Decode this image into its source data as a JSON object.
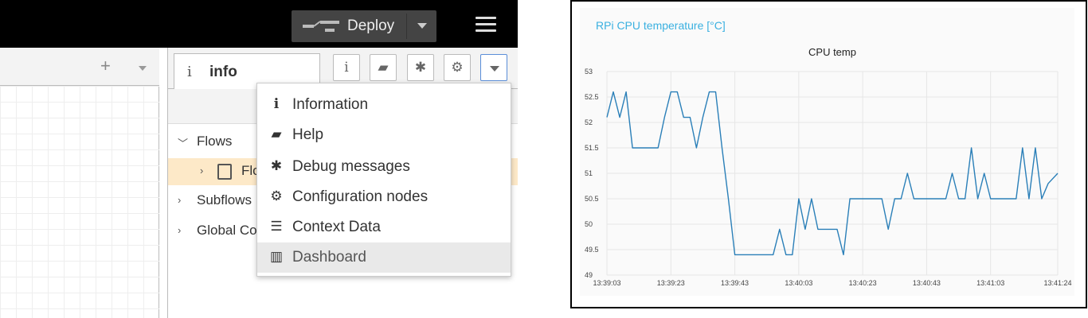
{
  "editor": {
    "deploy_label": "Deploy",
    "workspace": {
      "add_symbol": "+"
    },
    "sidebar": {
      "active_tab_icon": "i",
      "active_tab_label": "info",
      "buttons": [
        {
          "name": "info-icon",
          "glyph": "i"
        },
        {
          "name": "book-icon",
          "glyph": "▰"
        },
        {
          "name": "bug-icon",
          "glyph": "✱"
        },
        {
          "name": "gear-icon",
          "glyph": "⚙"
        }
      ],
      "tree": {
        "flows": "Flows",
        "flow_item": "Flo",
        "subflows": "Subflows",
        "globals": "Global Co"
      }
    },
    "menu": {
      "items": [
        {
          "icon": "info-icon",
          "glyph": "i",
          "label": "Information"
        },
        {
          "icon": "book-icon",
          "glyph": "▰",
          "label": "Help"
        },
        {
          "icon": "bug-icon",
          "glyph": "✱",
          "label": "Debug messages"
        },
        {
          "icon": "gear-icon",
          "glyph": "⚙",
          "label": "Configuration nodes"
        },
        {
          "icon": "database-icon",
          "glyph": "☰",
          "label": "Context Data"
        },
        {
          "icon": "bar-chart-icon",
          "glyph": "▥",
          "label": "Dashboard"
        }
      ],
      "highlighted_index": 5
    }
  },
  "dashboard": {
    "group_title": "RPi CPU temperature [°C]",
    "accent_color": "#3ab0e0",
    "line_color": "#2a7fb8"
  },
  "chart_data": {
    "type": "line",
    "title": "CPU temp",
    "xlabel": "",
    "ylabel": "",
    "ylim": [
      49,
      53
    ],
    "yticks": [
      49,
      49.5,
      50,
      50.5,
      51,
      51.5,
      52,
      52.5,
      53
    ],
    "xticks": [
      "13:39:03",
      "13:39:23",
      "13:39:43",
      "13:40:03",
      "13:40:23",
      "13:40:43",
      "13:41:03",
      "13:41:24"
    ],
    "grid": true,
    "series": [
      {
        "x": [
          "13:39:03",
          "13:39:05",
          "13:39:07",
          "13:39:09",
          "13:39:11",
          "13:39:13",
          "13:39:15",
          "13:39:17",
          "13:39:19",
          "13:39:21",
          "13:39:23",
          "13:39:25",
          "13:39:27",
          "13:39:29",
          "13:39:31",
          "13:39:33",
          "13:39:35",
          "13:39:37",
          "13:39:39",
          "13:39:41",
          "13:39:43",
          "13:39:45",
          "13:39:47",
          "13:39:49",
          "13:39:51",
          "13:39:53",
          "13:39:55",
          "13:39:57",
          "13:39:59",
          "13:40:01",
          "13:40:03",
          "13:40:05",
          "13:40:07",
          "13:40:09",
          "13:40:11",
          "13:40:13",
          "13:40:15",
          "13:40:17",
          "13:40:19",
          "13:40:21",
          "13:40:23",
          "13:40:25",
          "13:40:27",
          "13:40:29",
          "13:40:31",
          "13:40:33",
          "13:40:35",
          "13:40:37",
          "13:40:39",
          "13:40:41",
          "13:40:43",
          "13:40:45",
          "13:40:47",
          "13:40:49",
          "13:40:51",
          "13:40:53",
          "13:40:55",
          "13:40:57",
          "13:40:59",
          "13:41:01",
          "13:41:03",
          "13:41:05",
          "13:41:07",
          "13:41:09",
          "13:41:11",
          "13:41:13",
          "13:41:15",
          "13:41:17",
          "13:41:19",
          "13:41:21",
          "13:41:24"
        ],
        "values": [
          52.1,
          52.6,
          52.1,
          52.6,
          51.5,
          51.5,
          51.5,
          51.5,
          51.5,
          52.1,
          52.6,
          52.6,
          52.1,
          52.1,
          51.5,
          52.1,
          52.6,
          52.6,
          51.5,
          50.5,
          49.4,
          49.4,
          49.4,
          49.4,
          49.4,
          49.4,
          49.4,
          49.9,
          49.4,
          49.4,
          50.5,
          49.9,
          50.5,
          49.9,
          49.9,
          49.9,
          49.9,
          49.4,
          50.5,
          50.5,
          50.5,
          50.5,
          50.5,
          50.5,
          49.9,
          50.5,
          50.5,
          51.0,
          50.5,
          50.5,
          50.5,
          50.5,
          50.5,
          50.5,
          51.0,
          50.5,
          50.5,
          51.5,
          50.5,
          51.0,
          50.5,
          50.5,
          50.5,
          50.5,
          50.5,
          51.5,
          50.5,
          51.5,
          50.5,
          50.8,
          51.0
        ]
      }
    ]
  }
}
